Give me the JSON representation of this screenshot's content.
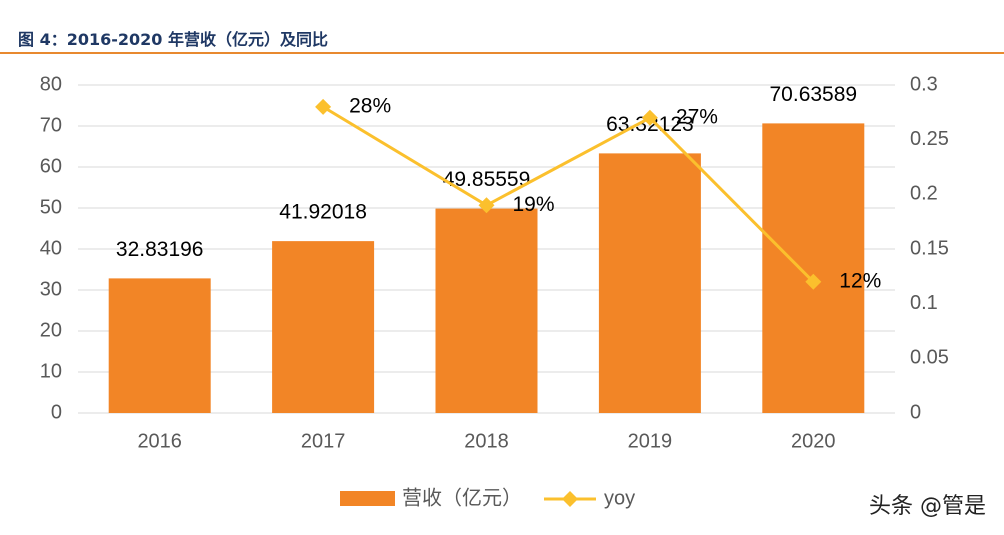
{
  "chart_data": {
    "type": "bar-line",
    "title": "图 4：2016-2020 年营收（亿元）及同比",
    "categories": [
      "2016",
      "2017",
      "2018",
      "2019",
      "2020"
    ],
    "series": [
      {
        "name": "营收（亿元）",
        "color": "#f28526",
        "values": [
          32.83196,
          41.92018,
          49.85559,
          63.32123,
          70.63589
        ]
      },
      {
        "name": "yoy",
        "color": "#fbc02d",
        "axis": "y2",
        "values": [
          null,
          0.28,
          0.19,
          0.27,
          0.12
        ],
        "value_labels": [
          null,
          "28%",
          "19%",
          "27%",
          "12%"
        ]
      }
    ],
    "ylim": [
      0,
      80
    ],
    "yticks": [
      0,
      10,
      20,
      30,
      40,
      50,
      60,
      70,
      80
    ],
    "y2lim": [
      0,
      0.3
    ],
    "y2ticks": [
      0,
      0.05,
      0.1,
      0.15,
      0.2,
      0.25,
      0.3
    ],
    "grid": true,
    "legend": "bottom",
    "watermark": "头条 @管是"
  }
}
